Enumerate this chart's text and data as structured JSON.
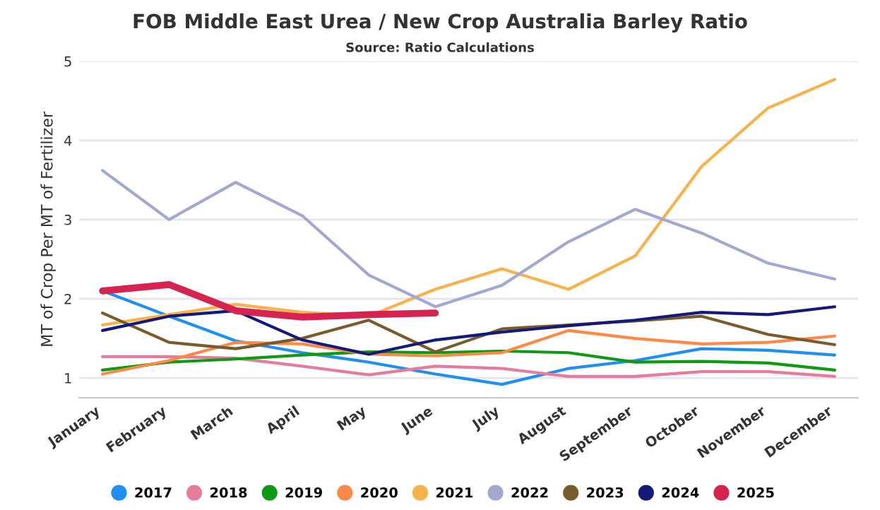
{
  "chart_data": {
    "type": "line",
    "title": "FOB Middle East Urea / New Crop Australia Barley Ratio",
    "subtitle": "Source: Ratio Calculations",
    "ylabel": "MT of Crop Per MT of Fertilizer",
    "categories": [
      "January",
      "February",
      "March",
      "April",
      "May",
      "June",
      "July",
      "August",
      "September",
      "October",
      "November",
      "December"
    ],
    "series": [
      {
        "name": "2017",
        "color": "#1f8ff0",
        "values": [
          2.1,
          1.78,
          1.47,
          1.32,
          1.2,
          1.05,
          0.92,
          1.12,
          1.22,
          1.37,
          1.35,
          1.29
        ]
      },
      {
        "name": "2018",
        "color": "#e57d9a",
        "values": [
          1.27,
          1.27,
          1.25,
          1.15,
          1.04,
          1.15,
          1.12,
          1.02,
          1.02,
          1.08,
          1.08,
          1.02
        ]
      },
      {
        "name": "2019",
        "color": "#0f9a13",
        "values": [
          1.1,
          1.2,
          1.24,
          1.29,
          1.33,
          1.32,
          1.34,
          1.32,
          1.2,
          1.21,
          1.19,
          1.1
        ]
      },
      {
        "name": "2020",
        "color": "#fd8948",
        "values": [
          1.05,
          1.22,
          1.45,
          1.43,
          1.3,
          1.28,
          1.32,
          1.6,
          1.5,
          1.43,
          1.45,
          1.53
        ]
      },
      {
        "name": "2021",
        "color": "#f9b14a",
        "values": [
          1.67,
          1.8,
          1.93,
          1.83,
          1.78,
          2.12,
          2.38,
          2.12,
          2.54,
          3.67,
          4.41,
          4.77
        ]
      },
      {
        "name": "2022",
        "color": "#a3a8d2",
        "values": [
          3.62,
          3.0,
          3.47,
          3.05,
          2.3,
          1.9,
          2.17,
          2.72,
          3.13,
          2.83,
          2.45,
          2.25
        ]
      },
      {
        "name": "2023",
        "color": "#7b5a2c",
        "values": [
          1.82,
          1.45,
          1.37,
          1.5,
          1.73,
          1.33,
          1.62,
          1.67,
          1.72,
          1.78,
          1.55,
          1.42
        ]
      },
      {
        "name": "2024",
        "color": "#141a7a",
        "values": [
          1.6,
          1.78,
          1.85,
          1.48,
          1.3,
          1.48,
          1.58,
          1.66,
          1.73,
          1.83,
          1.8,
          1.9
        ]
      },
      {
        "name": "2025",
        "color": "#d7234f",
        "values": [
          2.1,
          2.18,
          1.85,
          1.77,
          1.8,
          1.82,
          null,
          null,
          null,
          null,
          null,
          null
        ]
      }
    ],
    "ylim": [
      0.75,
      5
    ],
    "yticks": [
      1,
      2,
      3,
      4,
      5
    ],
    "grid": "y",
    "legend": "bottom",
    "marker": "none",
    "line_style": "solid"
  }
}
